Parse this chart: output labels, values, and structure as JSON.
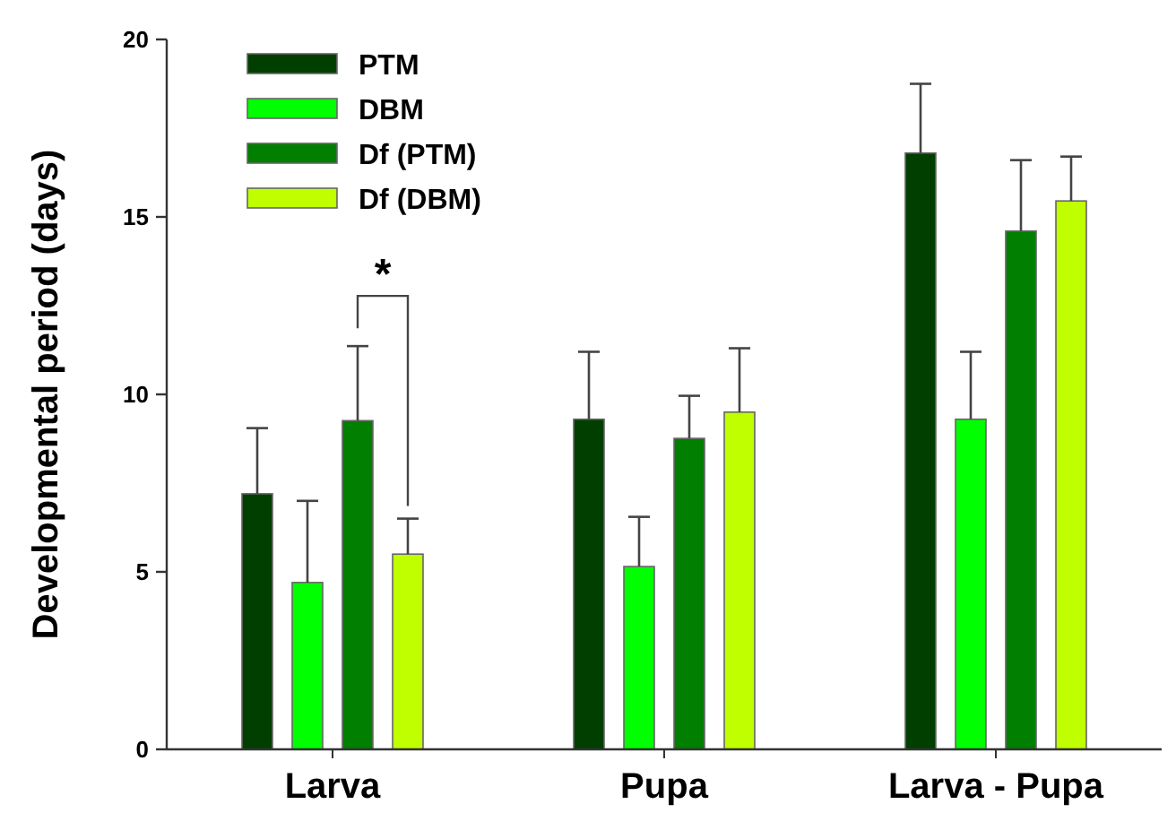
{
  "chart_data": {
    "type": "bar",
    "ylabel": "Developmental period (days)",
    "categories": [
      "Larva",
      "Pupa",
      "Larva - Pupa"
    ],
    "series": [
      {
        "name": "PTM",
        "color": "#003f00",
        "values": [
          7.2,
          9.3,
          16.8
        ],
        "errors": [
          [
            7.2,
            9.05
          ],
          [
            9.3,
            11.2
          ],
          [
            16.8,
            18.75
          ]
        ]
      },
      {
        "name": "DBM",
        "color": "#00ff00",
        "values": [
          4.7,
          5.15,
          9.3
        ],
        "errors": [
          [
            4.7,
            7.0
          ],
          [
            5.15,
            6.55
          ],
          [
            9.3,
            11.2
          ]
        ]
      },
      {
        "name": "Df (PTM)",
        "color": "#007f00",
        "values": [
          9.26,
          8.76,
          14.6
        ],
        "errors": [
          [
            9.26,
            11.36
          ],
          [
            8.76,
            9.96
          ],
          [
            14.6,
            16.6
          ]
        ]
      },
      {
        "name": "Df (DBM)",
        "color": "#bfff00",
        "values": [
          5.5,
          9.5,
          15.45
        ],
        "errors": [
          [
            5.5,
            6.5
          ],
          [
            9.5,
            11.3
          ],
          [
            15.45,
            16.7
          ]
        ]
      }
    ],
    "ylim": [
      0,
      20
    ],
    "yticks": [
      0,
      5,
      10,
      15,
      20
    ],
    "grid": false,
    "legend": "top left",
    "annotations": [
      "*"
    ]
  }
}
